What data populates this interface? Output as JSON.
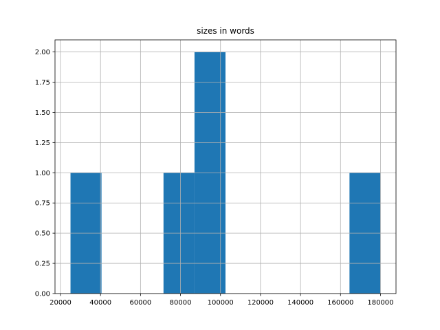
{
  "chart_data": {
    "type": "bar",
    "subtype": "histogram",
    "title": "sizes in words",
    "xlabel": "",
    "ylabel": "",
    "bins": [
      {
        "start": 25000,
        "end": 40500,
        "count": 1
      },
      {
        "start": 40500,
        "end": 56000,
        "count": 0
      },
      {
        "start": 56000,
        "end": 71500,
        "count": 0
      },
      {
        "start": 71500,
        "end": 87000,
        "count": 1
      },
      {
        "start": 87000,
        "end": 102500,
        "count": 2
      },
      {
        "start": 102500,
        "end": 118000,
        "count": 0
      },
      {
        "start": 118000,
        "end": 133500,
        "count": 0
      },
      {
        "start": 133500,
        "end": 149000,
        "count": 0
      },
      {
        "start": 149000,
        "end": 164500,
        "count": 0
      },
      {
        "start": 164500,
        "end": 180000,
        "count": 1
      }
    ],
    "xlim": [
      17250,
      187750
    ],
    "ylim": [
      0,
      2.1
    ],
    "xticks": [
      20000,
      40000,
      60000,
      80000,
      100000,
      120000,
      140000,
      160000,
      180000
    ],
    "yticks": [
      0.0,
      0.25,
      0.5,
      0.75,
      1.0,
      1.25,
      1.5,
      1.75,
      2.0
    ],
    "xtick_labels": [
      "20000",
      "40000",
      "60000",
      "80000",
      "100000",
      "120000",
      "140000",
      "160000",
      "180000"
    ],
    "ytick_labels": [
      "0.00",
      "0.25",
      "0.50",
      "0.75",
      "1.00",
      "1.25",
      "1.50",
      "1.75",
      "2.00"
    ],
    "grid": true,
    "colors": {
      "bar": "#1f77b4",
      "grid": "#b0b0b0"
    }
  }
}
